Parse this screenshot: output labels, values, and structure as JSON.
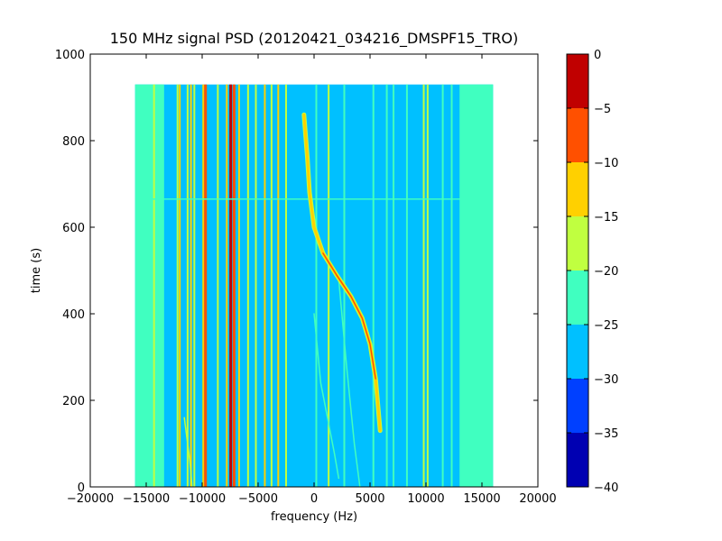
{
  "chart_data": {
    "type": "heatmap",
    "title": "150 MHz signal PSD (20120421_034216_DMSPF15_TRO)",
    "xlabel": "frequency (Hz)",
    "ylabel": "time (s)",
    "xlim": [
      -20000,
      20000
    ],
    "ylim": [
      0,
      1000
    ],
    "x_ticks": [
      -20000,
      -15000,
      -10000,
      -5000,
      0,
      5000,
      10000,
      15000,
      20000
    ],
    "x_tick_labels": [
      "−20000",
      "−15000",
      "−10000",
      "−5000",
      "0",
      "5000",
      "10000",
      "15000",
      "20000"
    ],
    "y_ticks": [
      0,
      200,
      400,
      600,
      800,
      1000
    ],
    "y_tick_labels": [
      "0",
      "200",
      "400",
      "600",
      "800",
      "1000"
    ],
    "data_extent": {
      "x": [
        -16000,
        16000
      ],
      "y": [
        0,
        930
      ]
    },
    "colorbar": {
      "levels": [
        -40,
        -35,
        -30,
        -25,
        -20,
        -15,
        -10,
        -5,
        0
      ],
      "tick_labels": [
        "−40",
        "−35",
        "−30",
        "−25",
        "−20",
        "−15",
        "−10",
        "−5",
        "0"
      ],
      "colors": [
        "#0000b2",
        "#0040ff",
        "#00c0ff",
        "#40ffc0",
        "#c0ff40",
        "#ffd000",
        "#ff5000",
        "#c00000"
      ]
    },
    "background_level": -27.5,
    "edge_band_level": -22.5,
    "edge_bands": [
      [
        -16000,
        -13400
      ],
      [
        13000,
        16000
      ]
    ],
    "static_lines": [
      {
        "x": -14300,
        "level": -17.5
      },
      {
        "x": -13700,
        "level": -22.5
      },
      {
        "x": -12200,
        "level": -17.5
      },
      {
        "x": -12000,
        "level": -12.5
      },
      {
        "x": -11300,
        "level": -17.5
      },
      {
        "x": -11000,
        "level": -12.5
      },
      {
        "x": -10700,
        "level": -17.5
      },
      {
        "x": -9900,
        "level": -12.5
      },
      {
        "x": -9700,
        "level": -7.5
      },
      {
        "x": -8600,
        "level": -17.5
      },
      {
        "x": -7800,
        "level": -12.5
      },
      {
        "x": -7450,
        "level": -2.5
      },
      {
        "x": -7150,
        "level": -7.5
      },
      {
        "x": -6700,
        "level": -12.5
      },
      {
        "x": -5900,
        "level": -17.5
      },
      {
        "x": -5200,
        "level": -17.5
      },
      {
        "x": -4400,
        "level": -12.5
      },
      {
        "x": -3800,
        "level": -17.5
      },
      {
        "x": -3200,
        "level": -12.5
      },
      {
        "x": -2500,
        "level": -17.5
      },
      {
        "x": 200,
        "level": -22.5
      },
      {
        "x": 1300,
        "level": -17.5
      },
      {
        "x": 2700,
        "level": -22.5
      },
      {
        "x": 5300,
        "level": -22.5
      },
      {
        "x": 6500,
        "level": -22.5
      },
      {
        "x": 7100,
        "level": -22.5
      },
      {
        "x": 8300,
        "level": -22.5
      },
      {
        "x": 9800,
        "level": -17.5
      },
      {
        "x": 10150,
        "level": -17.5
      },
      {
        "x": 11500,
        "level": -22.5
      },
      {
        "x": 12300,
        "level": -22.5
      }
    ],
    "doppler_trace": {
      "level": -12.5,
      "points": [
        {
          "x": -900,
          "y": 860
        },
        {
          "x": -600,
          "y": 760
        },
        {
          "x": -400,
          "y": 680
        },
        {
          "x": 0,
          "y": 600
        },
        {
          "x": 800,
          "y": 540
        },
        {
          "x": 2000,
          "y": 490
        },
        {
          "x": 3300,
          "y": 440
        },
        {
          "x": 4300,
          "y": 390
        },
        {
          "x": 5000,
          "y": 330
        },
        {
          "x": 5500,
          "y": 250
        },
        {
          "x": 5700,
          "y": 190
        },
        {
          "x": 5900,
          "y": 130
        }
      ]
    },
    "dispersed_traces": [
      {
        "level": -22.5,
        "points": [
          {
            "x": 0,
            "y": 400
          },
          {
            "x": 600,
            "y": 240
          },
          {
            "x": 1800,
            "y": 80
          },
          {
            "x": 2200,
            "y": 20
          }
        ]
      },
      {
        "level": -22.5,
        "points": [
          {
            "x": 2200,
            "y": 480
          },
          {
            "x": 2900,
            "y": 280
          },
          {
            "x": 3600,
            "y": 100
          },
          {
            "x": 4100,
            "y": 0
          }
        ]
      },
      {
        "level": -17.5,
        "points": [
          {
            "x": -11600,
            "y": 160
          },
          {
            "x": -11100,
            "y": 60
          },
          {
            "x": -10900,
            "y": 0
          }
        ]
      }
    ],
    "horizontal_artifact": {
      "y": 665,
      "level": -22.5
    }
  }
}
